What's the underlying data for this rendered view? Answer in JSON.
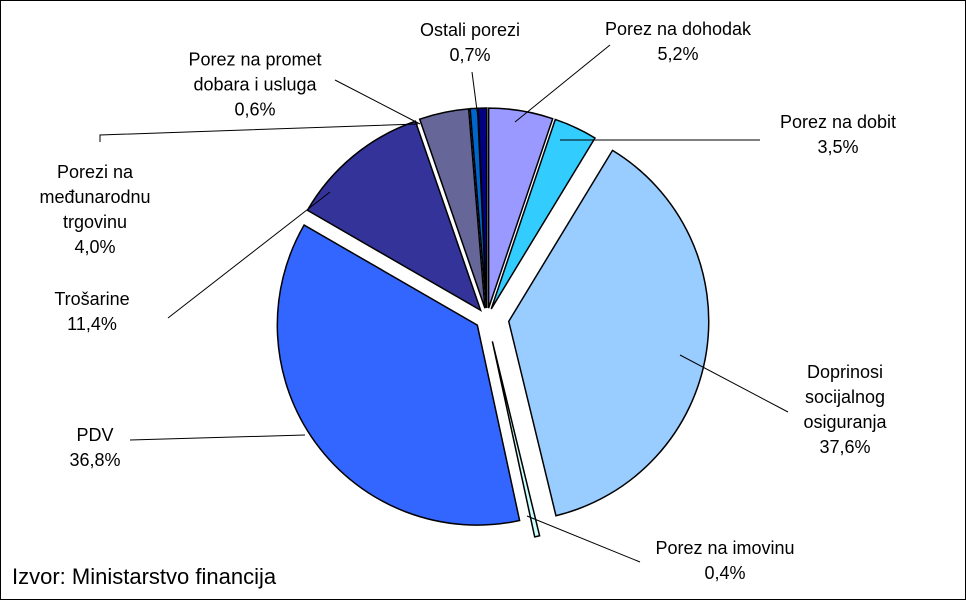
{
  "chart_data": {
    "type": "pie",
    "categories": [
      "Porez na dohodak",
      "Porez na dobit",
      "Doprinosi socijalnog osiguranja",
      "Porez na imovinu",
      "PDV",
      "Trošarine",
      "Porezi na međunarodnu trgovinu",
      "Porez na promet dobara i usluga",
      "Ostali porezi"
    ],
    "values": [
      5.2,
      3.5,
      37.6,
      0.4,
      36.8,
      11.4,
      4.0,
      0.6,
      0.7
    ],
    "value_labels": [
      "5,2%",
      "3,5%",
      "37,6%",
      "0,4%",
      "36,8%",
      "11,4%",
      "4,0%",
      "0,6%",
      "0,7%"
    ],
    "colors": [
      "#9999ff",
      "#33ccff",
      "#99ccff",
      "#ccffff",
      "#3366ff",
      "#333399",
      "#666699",
      "#0066cc",
      "#000080"
    ],
    "source": "Izvor: Ministarstvo financija"
  }
}
